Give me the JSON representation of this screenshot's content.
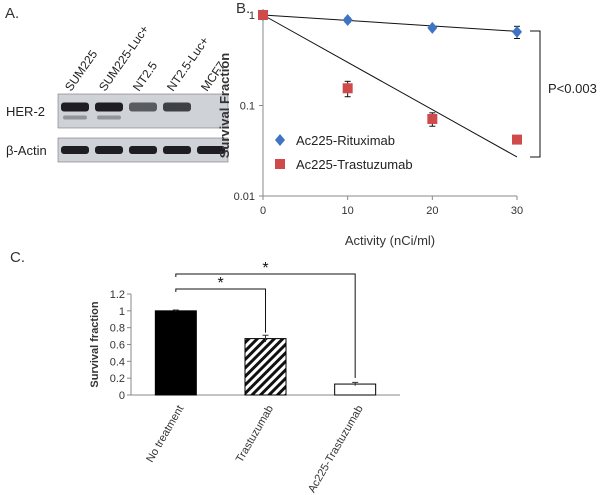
{
  "panel_labels": {
    "a": "A.",
    "b": "B.",
    "c": "C."
  },
  "blot": {
    "lanes": [
      "SUM225",
      "SUM225-Luc+",
      "NT2.5",
      "NT2.5-Luc+",
      "MCF7"
    ],
    "rows": [
      {
        "label": "HER-2",
        "intensity": [
          1.0,
          1.0,
          0.55,
          0.75,
          0.05
        ]
      },
      {
        "label": "β-Actin",
        "intensity": [
          1.0,
          1.0,
          1.0,
          1.0,
          1.0
        ]
      }
    ]
  },
  "chart_data": [
    {
      "type": "scatter",
      "xlabel": "Activity (nCi/ml)",
      "ylabel": "Survival Fraction",
      "xlim": [
        0,
        30
      ],
      "ylim": [
        0.01,
        1
      ],
      "yscale": "log",
      "xticks": [
        0,
        10,
        20,
        30
      ],
      "yticks": [
        {
          "v": 1,
          "label": "1"
        },
        {
          "v": 0.1,
          "label": "0.1"
        },
        {
          "v": 0.01,
          "label": "0.01"
        }
      ],
      "legend_position": "bottom-left",
      "annotation": "P<0.003",
      "series": [
        {
          "name": "Ac225-Rituximab",
          "marker": "diamond",
          "color": "#3f74c4",
          "x": [
            0,
            10,
            20,
            30
          ],
          "y": [
            1.0,
            0.88,
            0.72,
            0.65
          ],
          "err": [
            0,
            0.05,
            0.03,
            0.1
          ],
          "fit": {
            "x": [
              0,
              30
            ],
            "y": [
              1.0,
              0.66
            ]
          }
        },
        {
          "name": "Ac225-Trastuzumab",
          "marker": "square",
          "color": "#cf4a4a",
          "x": [
            0,
            10,
            20,
            30
          ],
          "y": [
            1.0,
            0.155,
            0.071,
            0.042
          ],
          "err": [
            0,
            0.03,
            0.012,
            0
          ],
          "fit": {
            "x": [
              0,
              30
            ],
            "y": [
              1.0,
              0.027
            ]
          }
        }
      ]
    },
    {
      "type": "bar",
      "ylabel": "Survival fraction",
      "categories": [
        "No treatment",
        "Trastuzumab",
        "Ac225-Trastuzumab"
      ],
      "values": [
        1.0,
        0.67,
        0.13
      ],
      "errors": [
        0.01,
        0.04,
        0.02
      ],
      "fills": [
        "solid",
        "hatched",
        "empty"
      ],
      "ylim": [
        0,
        1.2
      ],
      "yticks": [
        "0",
        "0.2",
        "0.4",
        "0.6",
        "0.8",
        "1",
        "1.2"
      ],
      "significance": [
        {
          "from": 0,
          "to": 1,
          "label": "*"
        },
        {
          "from": 0,
          "to": 2,
          "label": "*"
        }
      ]
    }
  ]
}
